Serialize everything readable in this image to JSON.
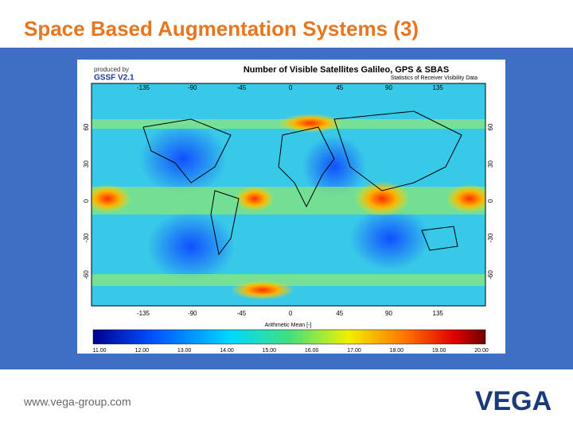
{
  "header": {
    "title": "Space Based Augmentation Systems (3)"
  },
  "map": {
    "credit": "produced by",
    "tool": "GSSF V2.1",
    "title": "Number of Visible Satellites Galileo, GPS & SBAS",
    "subtitle": "Statistics of Receiver Visibility Data",
    "longitudes": [
      "-135",
      "-90",
      "-45",
      "0",
      "45",
      "90",
      "135"
    ],
    "latitudes": [
      "60",
      "30",
      "0",
      "-30",
      "-60"
    ],
    "colorbar": {
      "title": "Arithmetic Mean [-]",
      "labels": [
        "11.00",
        "12.00",
        "13.00",
        "14.00",
        "15.00",
        "16.00",
        "17.00",
        "18.00",
        "19.00",
        "20.00"
      ]
    }
  },
  "footer": {
    "url": "www.vega-group.com",
    "logo": "VEGA"
  }
}
